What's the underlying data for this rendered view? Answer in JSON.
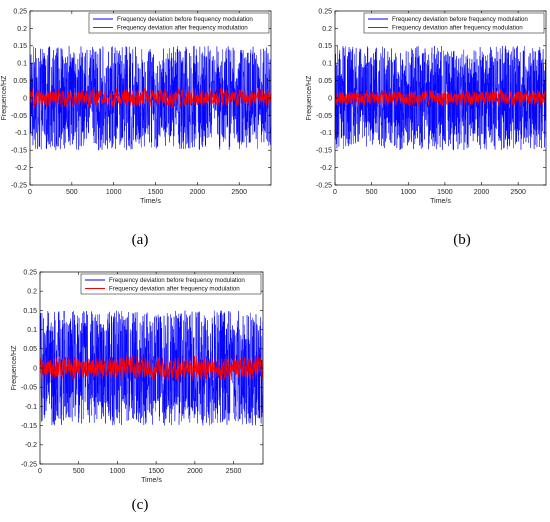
{
  "chart_data": [
    {
      "type": "line",
      "panel_label": "(a)",
      "xlabel": "Time/s",
      "ylabel": "Frequence/HZ",
      "xlim": [
        0,
        2880
      ],
      "ylim": [
        -0.25,
        0.25
      ],
      "xticks": [
        0,
        500,
        1000,
        1500,
        2000,
        2500
      ],
      "yticks": [
        -0.25,
        -0.2,
        -0.15,
        -0.1,
        -0.05,
        0,
        0.05,
        0.1,
        0.15,
        0.2,
        0.25
      ],
      "ytick_labels": [
        "-0.25",
        "-0.2",
        "-0.15",
        "-0.1",
        "-0.05",
        "0",
        "0.05",
        "0.1",
        "0.15",
        "0.2",
        "0.25"
      ],
      "legend_position": "top-right",
      "grid": false,
      "series": [
        {
          "name": "Frequency deviation before frequency modulation",
          "color": "#0000ff",
          "amplitude": 0.15,
          "x_range": [
            0,
            2880
          ]
        },
        {
          "name": "Frequency deviation after frequency modulation",
          "color": "#ff0000",
          "amplitude": 0.03,
          "x_range": [
            0,
            2880
          ]
        }
      ]
    },
    {
      "type": "line",
      "panel_label": "(b)",
      "xlabel": "Time/s",
      "ylabel": "Frequence/HZ",
      "xlim": [
        0,
        2880
      ],
      "ylim": [
        -0.25,
        0.25
      ],
      "xticks": [
        0,
        500,
        1000,
        1500,
        2000,
        2500
      ],
      "yticks": [
        -0.25,
        -0.2,
        -0.15,
        -0.1,
        -0.05,
        0,
        0.05,
        0.1,
        0.15,
        0.2,
        0.25
      ],
      "ytick_labels": [
        "-0.25",
        "-0.2",
        "-0.15",
        "-0.1",
        "-0.05",
        "0",
        "0.05",
        "0.1",
        "0.15",
        "0.2",
        "0.25"
      ],
      "legend_position": "top-right",
      "grid": false,
      "series": [
        {
          "name": "Frequency deviation before frequency modulation",
          "color": "#0000ff",
          "amplitude": 0.15,
          "x_range": [
            0,
            2880
          ]
        },
        {
          "name": "Frequency deviation after frequency modulation",
          "color": "#ff0000",
          "amplitude": 0.025,
          "x_range": [
            0,
            2880
          ]
        }
      ]
    },
    {
      "type": "line",
      "panel_label": "(c)",
      "xlabel": "Time/s",
      "ylabel": "Frequence/HZ",
      "xlim": [
        0,
        2880
      ],
      "ylim": [
        -0.25,
        0.25
      ],
      "xticks": [
        0,
        500,
        1000,
        1500,
        2000,
        2500
      ],
      "yticks": [
        -0.25,
        -0.2,
        -0.15,
        -0.1,
        -0.05,
        0,
        0.05,
        0.1,
        0.15,
        0.2,
        0.25
      ],
      "ytick_labels": [
        "-0.25",
        "-0.2",
        "-0.15",
        "-0.1",
        "-0.05",
        "0",
        "0.05",
        "0.1",
        "0.15",
        "0.2",
        "0.25"
      ],
      "legend_position": "top-right",
      "grid": false,
      "series": [
        {
          "name": "Frequency deviation before frequency modulation",
          "color": "#0000ff",
          "amplitude": 0.15,
          "x_range": [
            0,
            2880
          ]
        },
        {
          "name": "Frequency deviation after frequency modulation",
          "color": "#ff0000",
          "amplitude": 0.035,
          "x_range": [
            0,
            2880
          ]
        }
      ]
    }
  ]
}
